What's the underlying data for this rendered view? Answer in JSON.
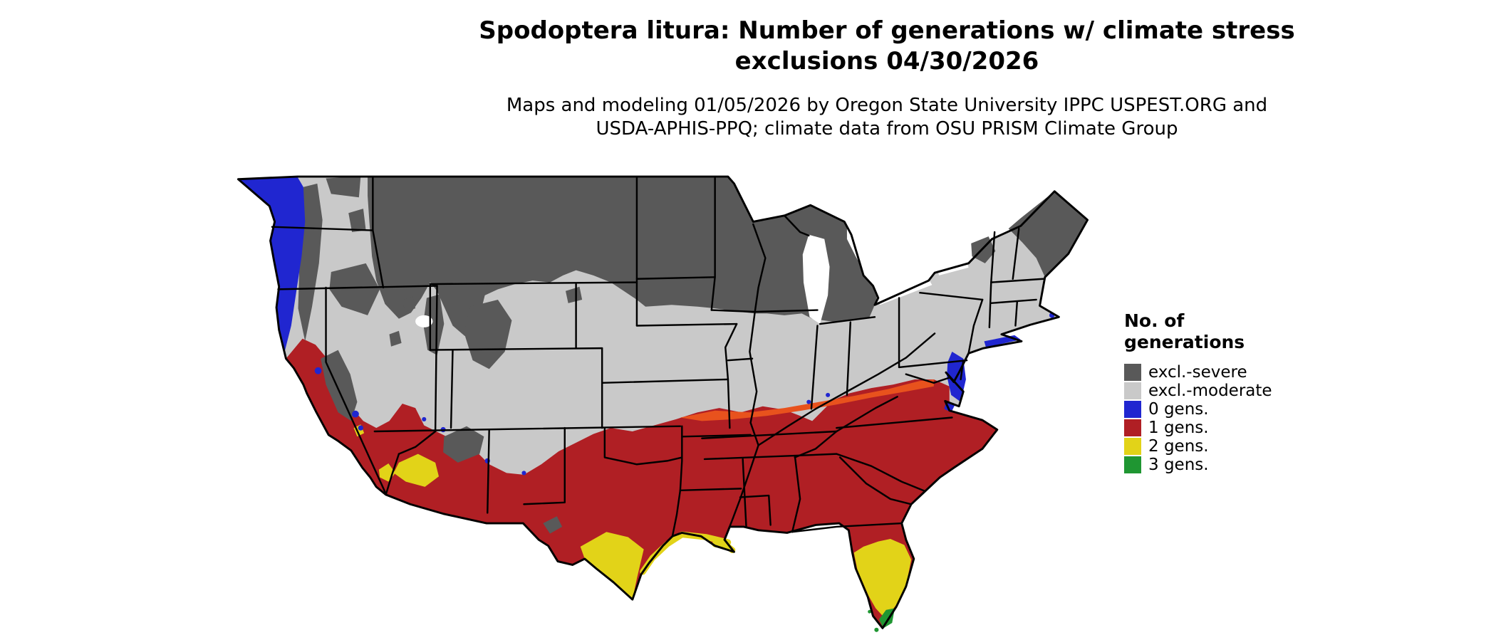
{
  "title": {
    "line1": "Spodoptera litura: Number of generations w/ climate stress",
    "line2": "exclusions 04/30/2026"
  },
  "subtitle": {
    "line1": "Maps and modeling 01/05/2026 by Oregon State University IPPC USPEST.ORG and",
    "line2": "USDA-APHIS-PPQ; climate data from OSU PRISM Climate Group"
  },
  "legend": {
    "title_line1": "No. of",
    "title_line2": "generations",
    "items": [
      {
        "label": "excl.-severe",
        "color": "#595959"
      },
      {
        "label": "excl.-moderate",
        "color": "#c9c9c9"
      },
      {
        "label": "0 gens.",
        "color": "#2026d0"
      },
      {
        "label": "1 gens.",
        "color": "#b01f24"
      },
      {
        "label": "2 gens.",
        "color": "#e2d318"
      },
      {
        "label": "3 gens.",
        "color": "#1f9632"
      }
    ]
  },
  "map": {
    "name": "Continental United States choropleth",
    "colors": {
      "state_border": "#000000",
      "lake_fill": "#ffffff",
      "transition_accent": "#e8521d"
    },
    "regions_by_class": [
      {
        "label": "excl.-severe",
        "areas": "Northern tier (Montana, North Dakota, Minnesota, Wisconsin, Michigan), Cascades, Sierra Nevada, Rockies, Adirondacks, northern New England"
      },
      {
        "label": "excl.-moderate",
        "areas": "Interior West, Great Plains, Midwest, Ohio Valley, Mid-Atlantic"
      },
      {
        "label": "0 gens.",
        "areas": "Pacific Northwest coast and Puget lowlands, northern California coast, Chesapeake Bay / Delmarva coast"
      },
      {
        "label": "1 gens.",
        "areas": "California valleys and south coast, southern Nevada, southern Arizona and New Mexico, most of Texas, Gulf states, Southeast north to Virginia"
      },
      {
        "label": "2 gens.",
        "areas": "South Texas, coastal Louisiana, central and southern Florida, southwest Arizona low deserts, Imperial Valley"
      },
      {
        "label": "3 gens.",
        "areas": "Southern tip of Florida"
      }
    ]
  }
}
